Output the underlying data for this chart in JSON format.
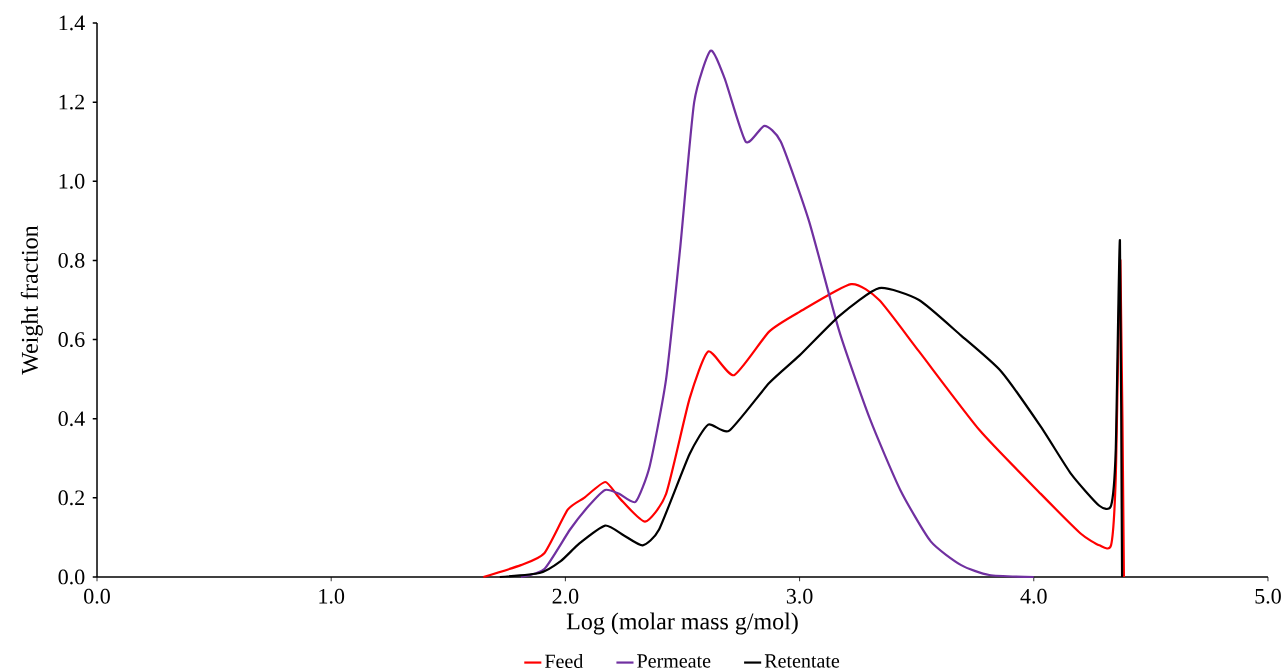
{
  "chart_data": {
    "type": "line",
    "xlabel": "Log (molar mass g/mol)",
    "ylabel": "Weight fraction",
    "xlim": [
      0,
      5
    ],
    "ylim": [
      0,
      1.4
    ],
    "xticks": [
      {
        "value": 0,
        "label": "0.0"
      },
      {
        "value": 1,
        "label": "1.0"
      },
      {
        "value": 2,
        "label": "2.0"
      },
      {
        "value": 3,
        "label": "3.0"
      },
      {
        "value": 4,
        "label": "4.0"
      },
      {
        "value": 5,
        "label": "5.0"
      }
    ],
    "yticks": [
      {
        "value": 0,
        "label": "0.0"
      },
      {
        "value": 0.2,
        "label": "0.2"
      },
      {
        "value": 0.4,
        "label": "0.4"
      },
      {
        "value": 0.6,
        "label": "0.6"
      },
      {
        "value": 0.8,
        "label": "0.8"
      },
      {
        "value": 1.0,
        "label": "1.0"
      },
      {
        "value": 1.2,
        "label": "1.2"
      },
      {
        "value": 1.4,
        "label": "1.4"
      }
    ],
    "grid": false,
    "legend": "bottom",
    "marker": "none",
    "line_style": "solid",
    "series": [
      {
        "name": "Feed",
        "color": "#ff0000",
        "x": [
          1.65,
          1.81,
          1.91,
          2.01,
          2.08,
          2.17,
          2.23,
          2.34,
          2.43,
          2.53,
          2.61,
          2.72,
          2.87,
          3.0,
          3.22,
          3.34,
          3.51,
          3.77,
          4.03,
          4.2,
          4.28,
          4.33,
          4.35,
          4.37,
          4.385
        ],
        "values": [
          0,
          0.03,
          0.06,
          0.17,
          0.2,
          0.24,
          0.2,
          0.14,
          0.21,
          0.45,
          0.57,
          0.51,
          0.62,
          0.67,
          0.74,
          0.7,
          0.57,
          0.37,
          0.21,
          0.11,
          0.08,
          0.08,
          0.25,
          0.8,
          0
        ]
      },
      {
        "name": "Permeate",
        "color": "#7030a0",
        "x": [
          1.81,
          1.91,
          2.02,
          2.1,
          2.17,
          2.23,
          2.3,
          2.36,
          2.43,
          2.49,
          2.55,
          2.62,
          2.68,
          2.77,
          2.85,
          2.92,
          3.04,
          3.17,
          3.3,
          3.43,
          3.56,
          3.69,
          3.81,
          4.0
        ],
        "values": [
          0,
          0.02,
          0.12,
          0.18,
          0.22,
          0.21,
          0.19,
          0.28,
          0.5,
          0.83,
          1.2,
          1.33,
          1.26,
          1.1,
          1.14,
          1.1,
          0.9,
          0.62,
          0.4,
          0.22,
          0.09,
          0.03,
          0.005,
          0
        ]
      },
      {
        "name": "Retentate",
        "color": "#000000",
        "x": [
          1.72,
          1.89,
          1.98,
          2.06,
          2.17,
          2.25,
          2.33,
          2.4,
          2.53,
          2.61,
          2.7,
          2.87,
          3.0,
          3.17,
          3.34,
          3.51,
          3.69,
          3.86,
          4.03,
          4.16,
          4.28,
          4.33,
          4.35,
          4.368,
          4.377
        ],
        "values": [
          0,
          0.01,
          0.04,
          0.085,
          0.13,
          0.105,
          0.08,
          0.12,
          0.31,
          0.385,
          0.37,
          0.49,
          0.56,
          0.66,
          0.73,
          0.7,
          0.61,
          0.52,
          0.38,
          0.26,
          0.18,
          0.18,
          0.32,
          0.85,
          0
        ]
      }
    ]
  }
}
